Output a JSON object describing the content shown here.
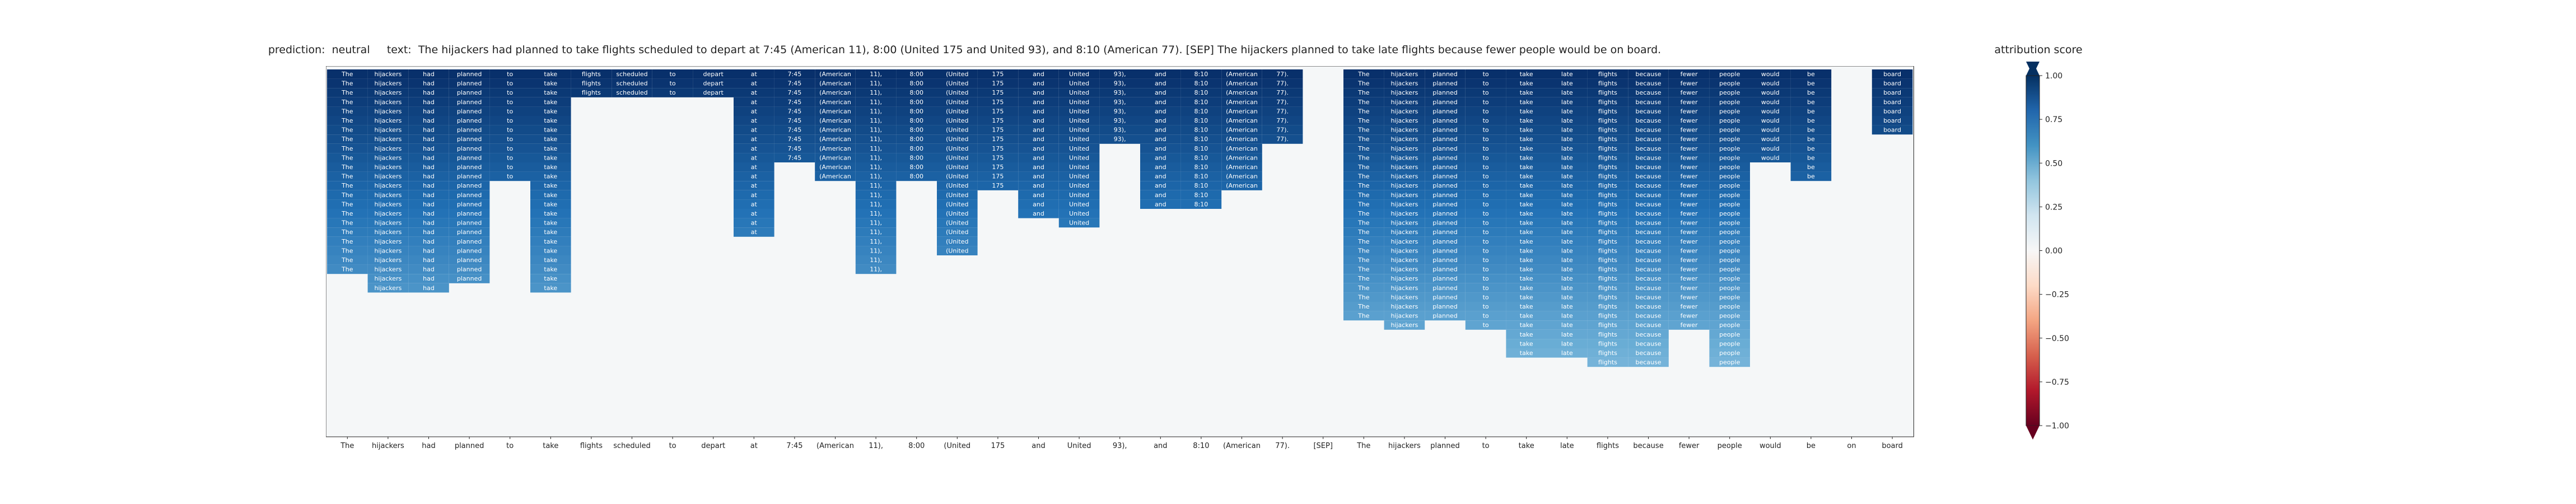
{
  "chart_data": {
    "type": "heatmap",
    "prediction_label": "prediction:",
    "prediction": "neutral",
    "text_label": "text:",
    "text": "The hijackers had planned to take flights scheduled to depart at 7:45 (American 11), 8:00 (United 175 and United 93), and 8:10 (American 77). [SEP] The hijackers planned to take late flights because fewer people would be on board.",
    "tokens": [
      "The",
      "hijackers",
      "had",
      "planned",
      "to",
      "take",
      "flights",
      "scheduled",
      "to",
      "depart",
      "at",
      "7:45",
      "(American",
      "11),",
      "8:00",
      "(United",
      "175",
      "and",
      "United",
      "93),",
      "and",
      "8:10",
      "(American",
      "77).",
      "[SEP]",
      "The",
      "hijackers",
      "planned",
      "to",
      "take",
      "late",
      "flights",
      "because",
      "fewer",
      "people",
      "would",
      "be",
      "on",
      "board"
    ],
    "column_lengths": [
      22,
      24,
      24,
      23,
      12,
      24,
      3,
      3,
      3,
      3,
      18,
      10,
      12,
      22,
      12,
      20,
      13,
      16,
      17,
      8,
      15,
      15,
      13,
      8,
      0,
      27,
      28,
      27,
      28,
      31,
      31,
      32,
      32,
      28,
      32,
      10,
      12,
      0,
      7
    ],
    "row_count": 33,
    "colorbar": {
      "label": "attribution score",
      "range": [
        -1.0,
        1.0
      ],
      "ticks": [
        "1.00",
        "0.75",
        "0.50",
        "0.25",
        "0.00",
        "−0.25",
        "−0.50",
        "−0.75",
        "−1.00"
      ],
      "colormap": "RdBu"
    }
  }
}
